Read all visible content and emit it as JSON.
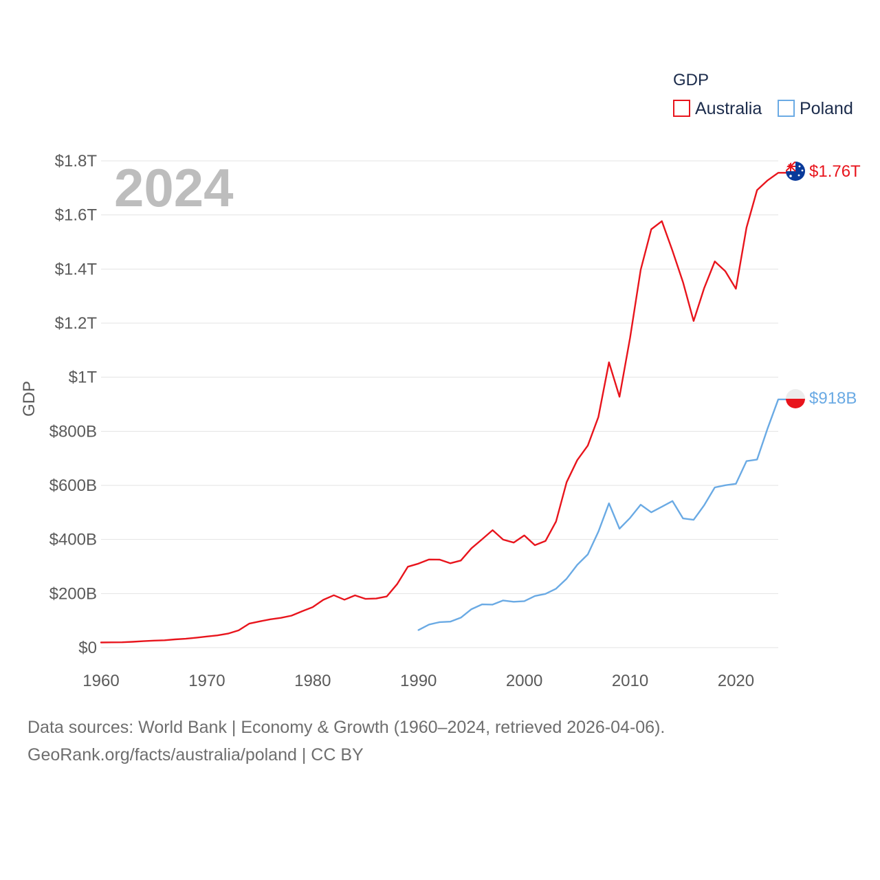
{
  "chart_data": {
    "type": "line",
    "ylabel": "GDP",
    "xlabel": "",
    "xlim": [
      1960,
      2024
    ],
    "ylim": [
      0,
      1800000000000
    ],
    "x_ticks": [
      1960,
      1970,
      1980,
      1990,
      2000,
      2010,
      2020
    ],
    "x_tick_labels": [
      "1960",
      "1970",
      "1980",
      "1990",
      "2000",
      "2010",
      "2020"
    ],
    "y_ticks": [
      0,
      200000000000,
      400000000000,
      600000000000,
      800000000000,
      1000000000000,
      1200000000000,
      1400000000000,
      1600000000000,
      1800000000000
    ],
    "y_tick_labels": [
      "$0",
      "$200B",
      "$400B",
      "$600B",
      "$800B",
      "$1T",
      "$1.2T",
      "$1.4T",
      "$1.6T",
      "$1.8T"
    ],
    "grid": true,
    "year_label": "2024",
    "legend": {
      "title": "GDP",
      "position": "top-right",
      "entries": [
        "Australia",
        "Poland"
      ]
    },
    "series": [
      {
        "name": "Australia",
        "color": "#e8141c",
        "end_label": "$1.76T",
        "flag_icon": "australia-flag-icon",
        "x": [
          1960,
          1961,
          1962,
          1963,
          1964,
          1965,
          1966,
          1967,
          1968,
          1969,
          1970,
          1971,
          1972,
          1973,
          1974,
          1975,
          1976,
          1977,
          1978,
          1979,
          1980,
          1981,
          1982,
          1983,
          1984,
          1985,
          1986,
          1987,
          1988,
          1989,
          1990,
          1991,
          1992,
          1993,
          1994,
          1995,
          1996,
          1997,
          1998,
          1999,
          2000,
          2001,
          2002,
          2003,
          2004,
          2005,
          2006,
          2007,
          2008,
          2009,
          2010,
          2011,
          2012,
          2013,
          2014,
          2015,
          2016,
          2017,
          2018,
          2019,
          2020,
          2021,
          2022,
          2023,
          2024
        ],
        "values": [
          19000000000,
          19600000000,
          19900000000,
          21500000000,
          23800000000,
          25900000000,
          27200000000,
          30400000000,
          32700000000,
          36600000000,
          41300000000,
          45200000000,
          51900000000,
          63700000000,
          88800000000,
          97100000000,
          104800000000,
          110100000000,
          118300000000,
          134600000000,
          149800000000,
          176600000000,
          193800000000,
          177300000000,
          193200000000,
          180200000000,
          181600000000,
          189100000000,
          235700000000,
          299300000000,
          310800000000,
          325900000000,
          325400000000,
          312000000000,
          322200000000,
          367200000000,
          400300000000,
          434600000000,
          399300000000,
          388400000000,
          415000000000,
          378900000000,
          394300000000,
          466500000000,
          611900000000,
          693300000000,
          747200000000,
          853100000000,
          1055000000000,
          927800000000,
          1146000000000,
          1397000000000,
          1547000000000,
          1577000000000,
          1468000000000,
          1351000000000,
          1208000000000,
          1330000000000,
          1428000000000,
          1392000000000,
          1327000000000,
          1553000000000,
          1692000000000,
          1728000000000,
          1756000000000
        ]
      },
      {
        "name": "Poland",
        "color": "#6aaae4",
        "end_label": "$918B",
        "flag_icon": "poland-flag-icon",
        "x": [
          1990,
          1991,
          1992,
          1993,
          1994,
          1995,
          1996,
          1997,
          1998,
          1999,
          2000,
          2001,
          2002,
          2003,
          2004,
          2005,
          2006,
          2007,
          2008,
          2009,
          2010,
          2011,
          2012,
          2013,
          2014,
          2015,
          2016,
          2017,
          2018,
          2019,
          2020,
          2021,
          2022,
          2023,
          2024
        ],
        "values": [
          65200000000,
          85500000000,
          94300000000,
          96000000000,
          110800000000,
          142100000000,
          159900000000,
          159100000000,
          174400000000,
          169700000000,
          171900000000,
          190900000000,
          198700000000,
          217800000000,
          255100000000,
          306100000000,
          344800000000,
          429000000000,
          533600000000,
          439800000000,
          479800000000,
          528600000000,
          500400000000,
          521000000000,
          542000000000,
          477600000000,
          472600000000,
          526700000000,
          592300000000,
          600400000000,
          605900000000,
          689800000000,
          695600000000,
          811200000000,
          918000000000
        ]
      }
    ]
  },
  "footer": {
    "sources": "Data sources: World Bank | Economy & Growth (1960–2024, retrieved 2026-04-06).",
    "credit": "GeoRank.org/facts/australia/poland | CC BY"
  }
}
